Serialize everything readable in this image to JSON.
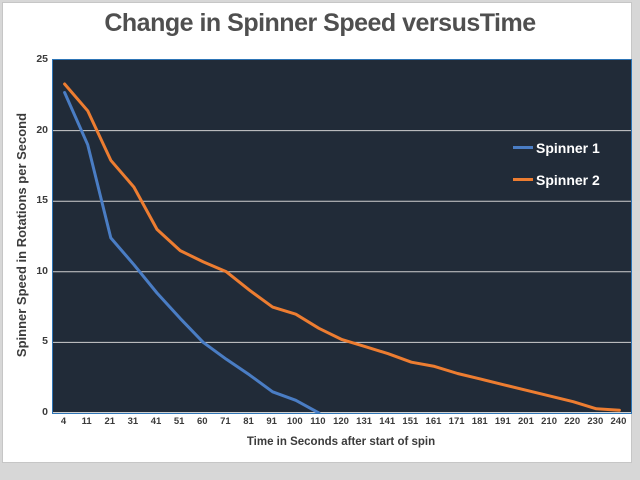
{
  "chart_data": {
    "type": "line",
    "title": "Change in Spinner Speed versusTime",
    "xlabel": "Time in Seconds after start of spin",
    "ylabel": "Spinner Speed in Rotations per Second",
    "categories": [
      "4",
      "11",
      "21",
      "31",
      "41",
      "51",
      "60",
      "71",
      "81",
      "91",
      "100",
      "110",
      "120",
      "131",
      "141",
      "151",
      "161",
      "171",
      "181",
      "191",
      "201",
      "210",
      "220",
      "230",
      "240"
    ],
    "y_ticks": [
      25,
      20,
      15,
      10,
      5,
      0
    ],
    "ylim": [
      0,
      25
    ],
    "grid": "horizontal",
    "legend_position": "inside-right",
    "series": [
      {
        "name": "Spinner 1",
        "color": "#4a7dc4",
        "values": [
          22.7,
          19,
          12.4,
          10.5,
          8.5,
          6.7,
          5,
          3.8,
          2.7,
          1.5,
          0.9,
          0,
          null,
          null,
          null,
          null,
          null,
          null,
          null,
          null,
          null,
          null,
          null,
          null,
          null
        ]
      },
      {
        "name": "Spinner 2",
        "color": "#ed7d31",
        "values": [
          23.3,
          21.4,
          17.9,
          16,
          13,
          11.5,
          10.7,
          10,
          8.7,
          7.5,
          7,
          6,
          5.2,
          4.7,
          4.2,
          3.6,
          3.3,
          2.8,
          2.4,
          2,
          1.6,
          1.2,
          0.8,
          0.3,
          0.2
        ]
      }
    ],
    "colors": {
      "page_bg": "#d7d7d7",
      "card_bg": "#ffffff",
      "plot_bg": "#212b38",
      "plot_border": "#2e75b6",
      "gridline": "#cfcfcf",
      "title_text": "#4f4f4f",
      "axis_text": "#3b3b3b",
      "legend_text": "#ffffff"
    }
  }
}
